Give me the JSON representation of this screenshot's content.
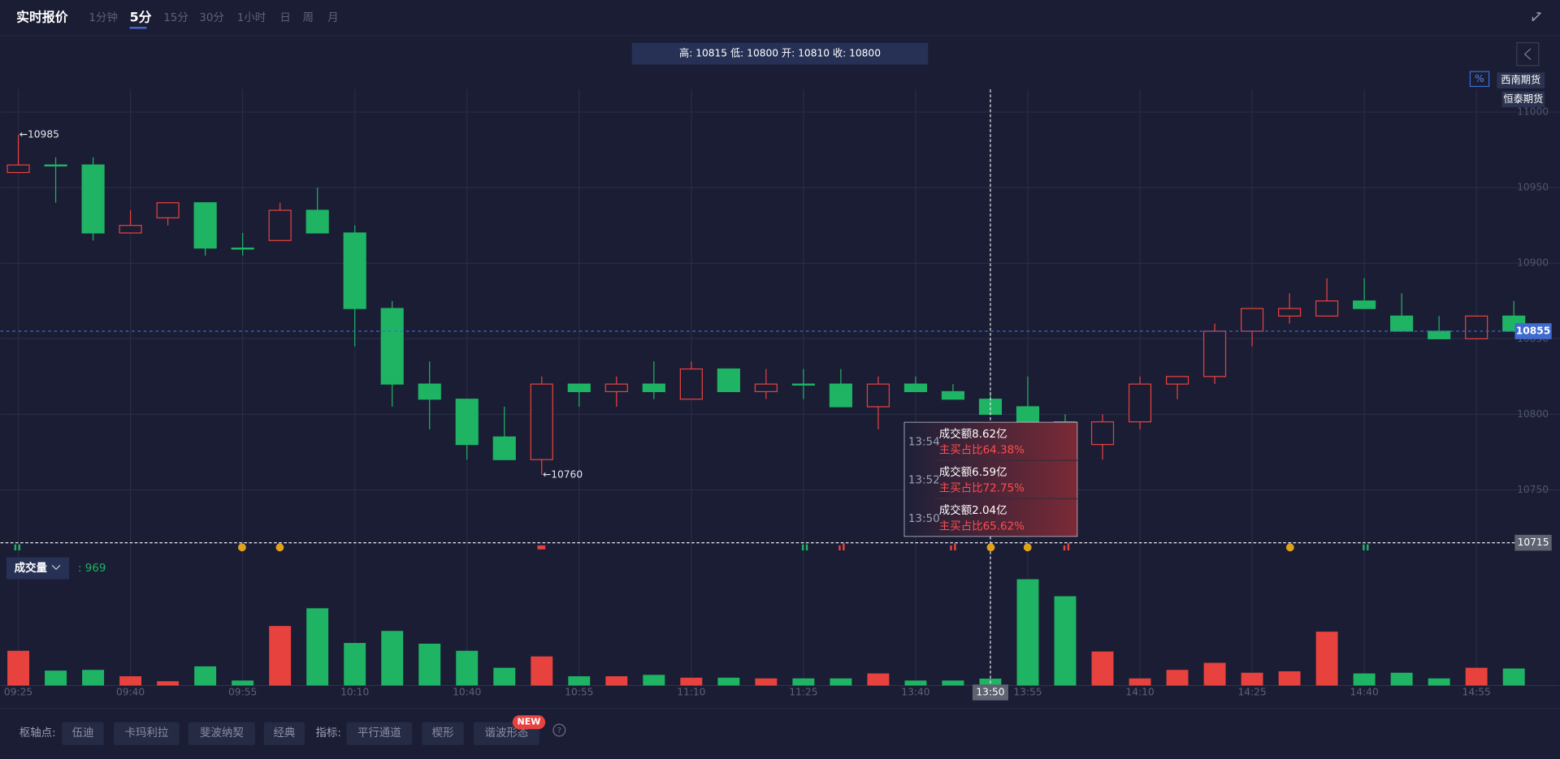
{
  "header": {
    "title": "实时报价",
    "tabs": [
      "1分钟",
      "5分",
      "15分",
      "30分",
      "1小时",
      "日",
      "周",
      "月"
    ],
    "active_tab": 1,
    "info": "高: 10815 低: 10800 开: 10810 收: 10800",
    "percent_icon": "%",
    "brokers": [
      "西南期货",
      "恒泰期货"
    ]
  },
  "chart_data": {
    "type": "candlestick",
    "categories": [
      "09:25",
      null,
      null,
      "09:40",
      null,
      null,
      "09:55",
      null,
      null,
      "10:10",
      null,
      null,
      "10:40",
      null,
      null,
      "10:55",
      null,
      null,
      "11:10",
      null,
      null,
      "11:25",
      null,
      null,
      "13:40",
      null,
      null,
      "13:55",
      null,
      null,
      "14:10",
      null,
      null,
      "14:25",
      null,
      null,
      "14:40",
      null,
      null,
      "14:55",
      null
    ],
    "open": [
      10960,
      10965,
      10965,
      10920,
      10930,
      10940,
      10910,
      10915,
      10935,
      10920,
      10870,
      10820,
      10810,
      10785,
      10770,
      10820,
      10815,
      10820,
      10810,
      10830,
      10815,
      10820,
      10820,
      10805,
      10820,
      10815,
      10810,
      10805,
      10795,
      10780,
      10795,
      10820,
      10825,
      10855,
      10865,
      10865,
      10875,
      10865,
      10855,
      10850,
      10865
    ],
    "high": [
      10985,
      10970,
      10970,
      10935,
      10940,
      10940,
      10920,
      10940,
      10950,
      10925,
      10875,
      10835,
      10810,
      10805,
      10825,
      10820,
      10825,
      10835,
      10835,
      10830,
      10830,
      10830,
      10830,
      10825,
      10825,
      10820,
      10815,
      10825,
      10800,
      10800,
      10825,
      10825,
      10860,
      10870,
      10880,
      10890,
      10890,
      10880,
      10865,
      10865,
      10875
    ],
    "low": [
      10960,
      10940,
      10915,
      10920,
      10925,
      10905,
      10905,
      10915,
      10920,
      10845,
      10805,
      10790,
      10770,
      10770,
      10760,
      10805,
      10805,
      10810,
      10810,
      10815,
      10810,
      10810,
      10805,
      10790,
      10815,
      10810,
      10800,
      10795,
      10785,
      10770,
      10790,
      10810,
      10820,
      10845,
      10860,
      10865,
      10870,
      10855,
      10850,
      10850,
      10855
    ],
    "close": [
      10965,
      10965,
      10920,
      10925,
      10940,
      10910,
      10910,
      10935,
      10920,
      10870,
      10820,
      10810,
      10780,
      10770,
      10820,
      10815,
      10820,
      10815,
      10830,
      10815,
      10820,
      10820,
      10805,
      10820,
      10815,
      10810,
      10800,
      10795,
      10790,
      10795,
      10820,
      10825,
      10855,
      10870,
      10870,
      10875,
      10870,
      10855,
      10850,
      10865,
      10855
    ],
    "up_color": "#e8423f",
    "down_color": "#1fb464",
    "ylim": [
      10706,
      11015
    ],
    "yticks": [
      10750,
      10800,
      10850,
      10900,
      10950,
      11000
    ],
    "grid": true,
    "last_price": 10855,
    "crosshair": {
      "x": "13:50",
      "y": 10715
    },
    "high_marker": {
      "value": 10985,
      "label": "←10985"
    },
    "low_marker": {
      "value": 10760,
      "label": "←10760"
    },
    "volume": {
      "name": "成交量",
      "current_label": ": 969",
      "values": [
        4900,
        2100,
        2200,
        1300,
        600,
        2700,
        700,
        8400,
        10900,
        6000,
        7700,
        5900,
        4900,
        2500,
        4100,
        1300,
        1300,
        1500,
        1100,
        1100,
        1000,
        1000,
        1000,
        1700,
        700,
        700,
        969,
        15000,
        12600,
        4800,
        1000,
        2200,
        3200,
        1800,
        2000,
        7600,
        1700,
        1800,
        1000,
        2500,
        2400
      ]
    },
    "tooltip": [
      {
        "time": "13:54",
        "amount": "成交额8.62亿",
        "ratio": "主买占比64.38%"
      },
      {
        "time": "13:52",
        "amount": "成交额6.59亿",
        "ratio": "主买占比72.75%"
      },
      {
        "time": "13:50",
        "amount": "成交额2.04亿",
        "ratio": "主买占比65.62%"
      }
    ]
  },
  "toolbar": {
    "pivot_label": "枢轴点:",
    "pivot_buttons": [
      "伍迪",
      "卡玛利拉",
      "斐波纳契",
      "经典"
    ],
    "indicator_label": "指标:",
    "indicator_buttons": [
      "平行通道",
      "楔形",
      "谐波形态"
    ],
    "badge": "NEW",
    "help": "?"
  }
}
